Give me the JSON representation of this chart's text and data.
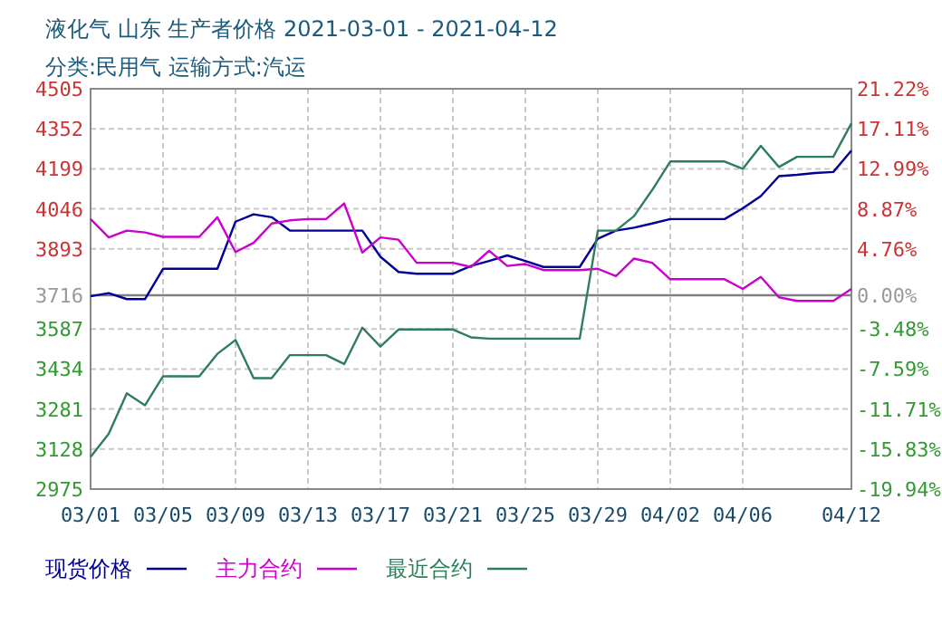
{
  "chart_data": {
    "type": "line",
    "title": "液化气 山东 生产者价格 2021-03-01 - 2021-04-12",
    "subtitle": "分类:民用气 运输方式:汽运",
    "x": [
      "2021-03-01",
      "2021-03-02",
      "2021-03-03",
      "2021-03-04",
      "2021-03-05",
      "2021-03-06",
      "2021-03-07",
      "2021-03-08",
      "2021-03-09",
      "2021-03-10",
      "2021-03-11",
      "2021-03-12",
      "2021-03-13",
      "2021-03-14",
      "2021-03-15",
      "2021-03-16",
      "2021-03-17",
      "2021-03-18",
      "2021-03-19",
      "2021-03-20",
      "2021-03-21",
      "2021-03-22",
      "2021-03-23",
      "2021-03-24",
      "2021-03-25",
      "2021-03-26",
      "2021-03-27",
      "2021-03-28",
      "2021-03-29",
      "2021-03-30",
      "2021-03-31",
      "2021-04-01",
      "2021-04-02",
      "2021-04-03",
      "2021-04-04",
      "2021-04-05",
      "2021-04-06",
      "2021-04-07",
      "2021-04-08",
      "2021-04-09",
      "2021-04-10",
      "2021-04-11",
      "2021-04-12"
    ],
    "series": [
      {
        "name": "现货价格",
        "color": "#000099",
        "values": [
          3712,
          3724,
          3701,
          3701,
          3817,
          3817,
          3817,
          3817,
          3997,
          4025,
          4014,
          3963,
          3963,
          3963,
          3963,
          3963,
          3863,
          3805,
          3798,
          3798,
          3798,
          3828,
          3847,
          3868,
          3847,
          3824,
          3824,
          3824,
          3932,
          3963,
          3974,
          3990,
          4007,
          4007,
          4007,
          4007,
          4048,
          4095,
          4171,
          4176,
          4183,
          4187,
          4269
        ]
      },
      {
        "name": "主力合约",
        "color": "#cc00cc",
        "values": [
          4007,
          3937,
          3963,
          3956,
          3939,
          3939,
          3939,
          4014,
          3881,
          3916,
          3990,
          4002,
          4007,
          4007,
          4067,
          3879,
          3937,
          3928,
          3840,
          3840,
          3840,
          3824,
          3886,
          3828,
          3835,
          3812,
          3812,
          3812,
          3817,
          3789,
          3856,
          3840,
          3777,
          3777,
          3777,
          3777,
          3740,
          3786,
          3708,
          3694,
          3694,
          3694,
          3740
        ]
      },
      {
        "name": "最近合约",
        "color": "#2e7d5b",
        "values": [
          3098,
          3186,
          3341,
          3295,
          3406,
          3406,
          3406,
          3492,
          3545,
          3399,
          3399,
          3487,
          3487,
          3487,
          3453,
          3592,
          3520,
          3585,
          3585,
          3585,
          3585,
          3555,
          3550,
          3550,
          3550,
          3550,
          3550,
          3550,
          3963,
          3963,
          4018,
          4118,
          4227,
          4227,
          4227,
          4227,
          4199,
          4287,
          4206,
          4245,
          4245,
          4245,
          4373
        ]
      }
    ],
    "xlim": [
      "2021-03-01",
      "2021-04-12"
    ],
    "xticks": [
      {
        "value": "2021-03-01",
        "label": "03/01"
      },
      {
        "value": "2021-03-05",
        "label": "03/05"
      },
      {
        "value": "2021-03-09",
        "label": "03/09"
      },
      {
        "value": "2021-03-13",
        "label": "03/13"
      },
      {
        "value": "2021-03-17",
        "label": "03/17"
      },
      {
        "value": "2021-03-21",
        "label": "03/21"
      },
      {
        "value": "2021-03-25",
        "label": "03/25"
      },
      {
        "value": "2021-03-29",
        "label": "03/29"
      },
      {
        "value": "2021-04-02",
        "label": "04/02"
      },
      {
        "value": "2021-04-06",
        "label": "04/06"
      },
      {
        "value": "2021-04-12",
        "label": "04/12"
      }
    ],
    "ylim": [
      2975,
      4505
    ],
    "yticks": [
      2975,
      3128,
      3281,
      3434,
      3587,
      3716,
      3893,
      4046,
      4199,
      4352,
      4505
    ],
    "y2lim": [
      -19.94,
      21.22
    ],
    "y2ticks": [
      {
        "value": -19.94,
        "label": "-19.94%"
      },
      {
        "value": -15.83,
        "label": "-15.83%"
      },
      {
        "value": -11.71,
        "label": "-11.71%"
      },
      {
        "value": -7.59,
        "label": "-7.59%"
      },
      {
        "value": -3.48,
        "label": "-3.48%"
      },
      {
        "value": 0,
        "label": "0.00%"
      },
      {
        "value": 4.76,
        "label": "4.76%"
      },
      {
        "value": 8.87,
        "label": "8.87%"
      },
      {
        "value": 12.99,
        "label": "12.99%"
      },
      {
        "value": 17.11,
        "label": "17.11%"
      },
      {
        "value": 21.22,
        "label": "21.22%"
      }
    ],
    "ref_lines": [
      {
        "axis": "y",
        "value": 3716,
        "color": "#808080"
      }
    ],
    "grid": true,
    "legend": "bottom",
    "marker": "none",
    "line_style": "solid"
  }
}
